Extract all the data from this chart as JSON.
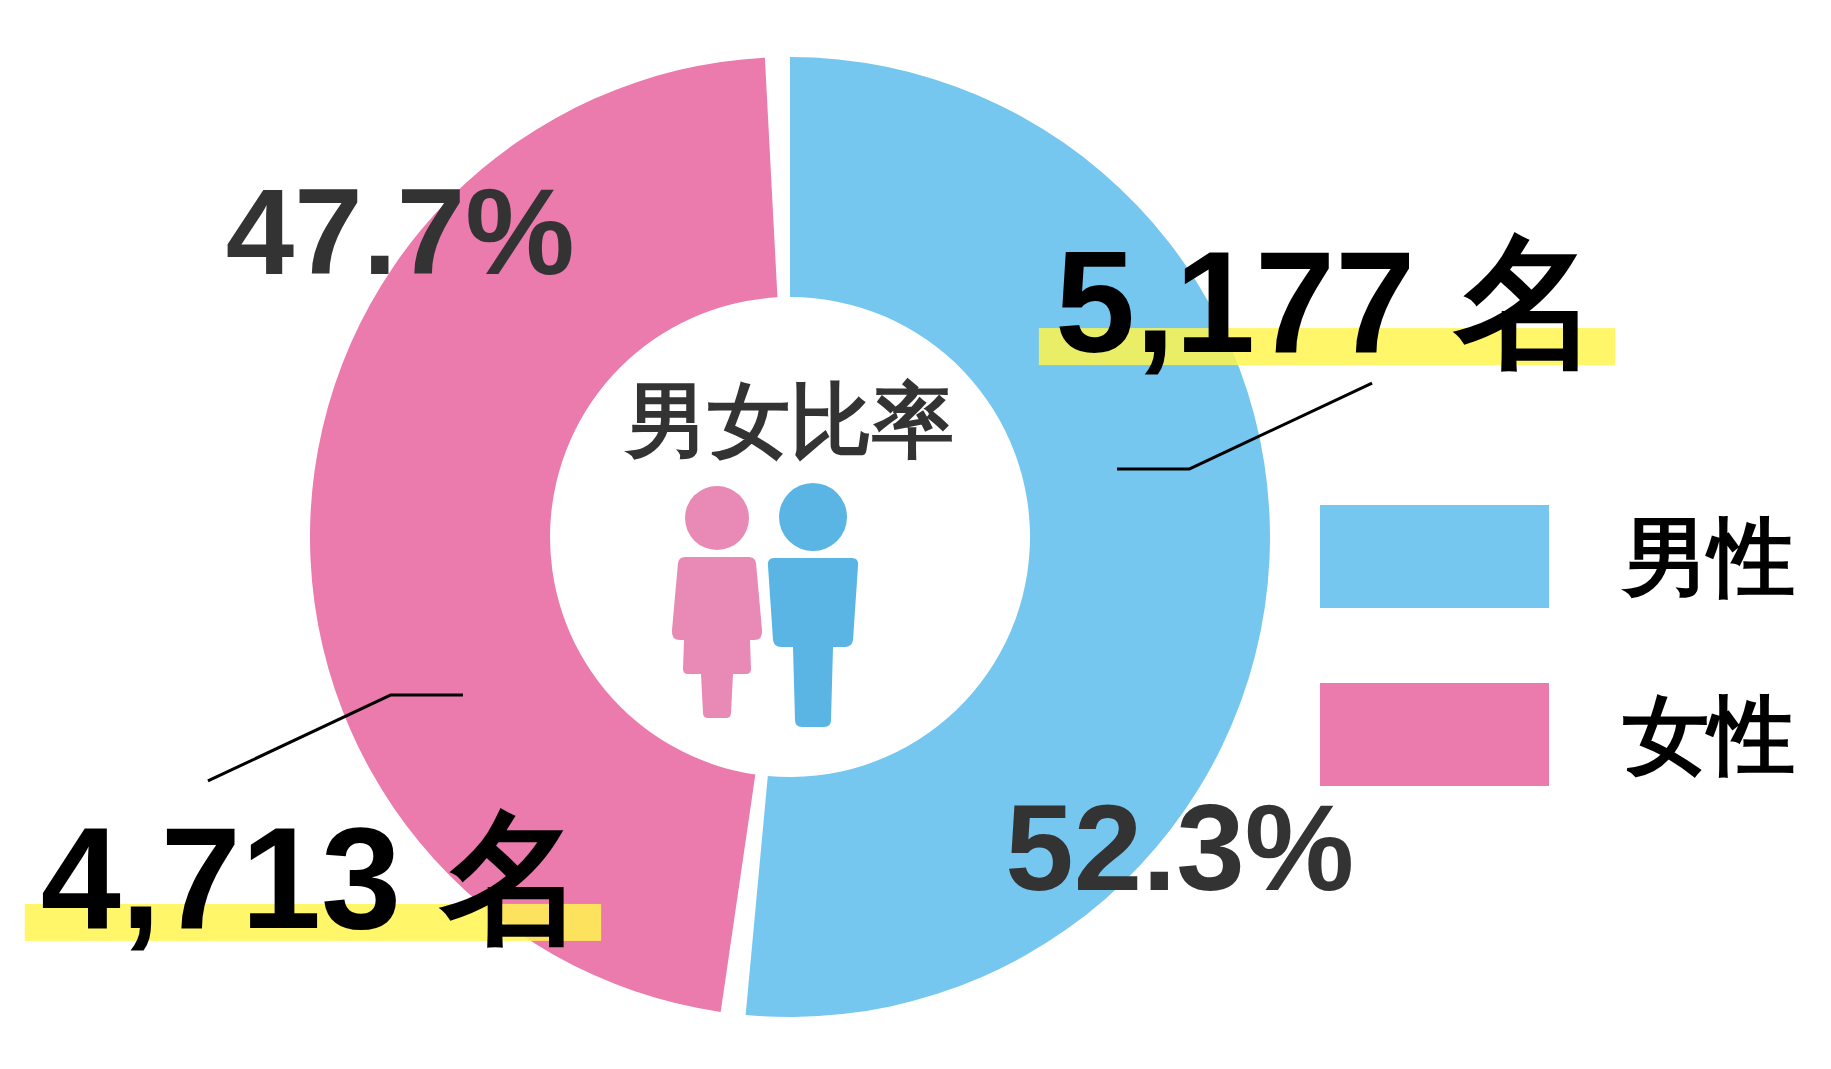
{
  "chart_data": {
    "type": "donut",
    "title": "男女比率",
    "categories": [
      "男性",
      "女性"
    ],
    "values": [
      5177,
      4713
    ],
    "colors": [
      "#76c7f0",
      "#eb7aad"
    ],
    "value_labels": [
      "5,177 名",
      "4,713 名"
    ],
    "annotations": [
      "52.3%",
      "47.7%"
    ],
    "legend": "right"
  }
}
